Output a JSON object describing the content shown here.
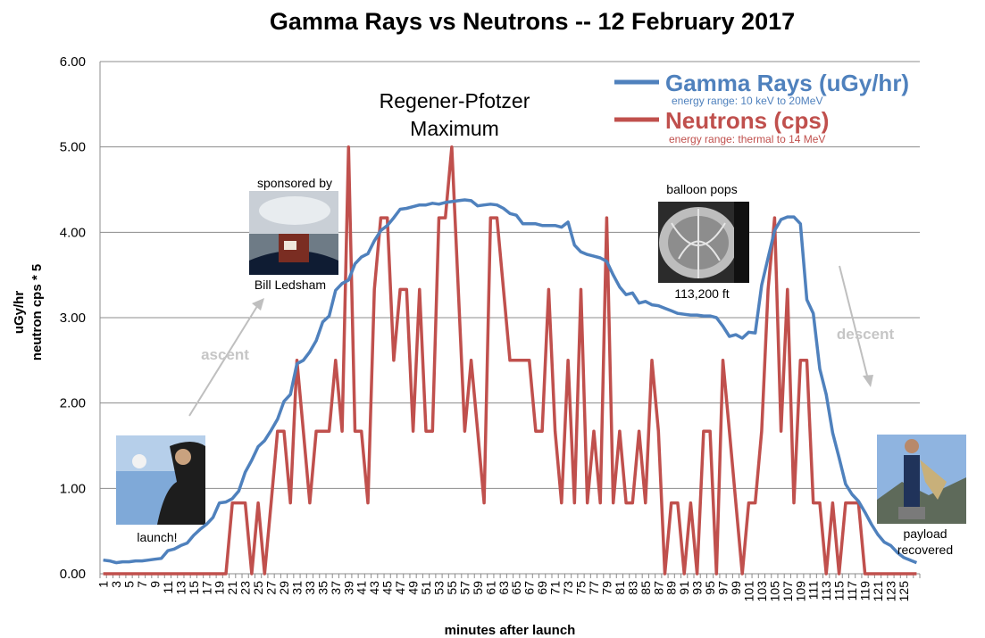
{
  "chart_data": {
    "type": "line",
    "title": "Gamma Rays vs Neutrons -- 12 February 2017",
    "xlabel": "minutes after launch",
    "ylabel_line1": "uGy/hr",
    "ylabel_line2": "neutron cps * 5",
    "ylim": [
      0,
      6
    ],
    "xlim": [
      1,
      127
    ],
    "y_ticks": [
      "0.00",
      "1.00",
      "2.00",
      "3.00",
      "4.00",
      "5.00",
      "6.00"
    ],
    "x_ticks": [
      "1",
      "3",
      "5",
      "7",
      "9",
      "11",
      "13",
      "15",
      "17",
      "19",
      "21",
      "23",
      "25",
      "27",
      "29",
      "31",
      "33",
      "35",
      "37",
      "39",
      "41",
      "43",
      "45",
      "47",
      "49",
      "51",
      "53",
      "55",
      "57",
      "59",
      "61",
      "63",
      "65",
      "67",
      "69",
      "71",
      "73",
      "75",
      "77",
      "79",
      "81",
      "83",
      "85",
      "87",
      "89",
      "91",
      "93",
      "95",
      "97",
      "99",
      "101",
      "103",
      "105",
      "107",
      "109",
      "111",
      "113",
      "115",
      "117",
      "119",
      "121",
      "123",
      "125"
    ],
    "grid": "horizontal",
    "legend_position": "top-right",
    "series": [
      {
        "name": "Gamma Rays (uGy/hr)",
        "subtitle": "energy range: 10 keV to 20MeV",
        "color": "#4f81bd",
        "values": [
          0.16,
          0.15,
          0.13,
          0.14,
          0.14,
          0.15,
          0.15,
          0.16,
          0.17,
          0.18,
          0.27,
          0.29,
          0.33,
          0.36,
          0.45,
          0.52,
          0.58,
          0.66,
          0.83,
          0.84,
          0.88,
          0.97,
          1.19,
          1.33,
          1.49,
          1.56,
          1.68,
          1.81,
          2.02,
          2.1,
          2.46,
          2.5,
          2.6,
          2.73,
          2.95,
          3.02,
          3.32,
          3.4,
          3.44,
          3.63,
          3.71,
          3.75,
          3.9,
          4.02,
          4.08,
          4.17,
          4.27,
          4.28,
          4.3,
          4.32,
          4.32,
          4.34,
          4.33,
          4.35,
          4.36,
          4.37,
          4.38,
          4.37,
          4.31,
          4.32,
          4.33,
          4.32,
          4.28,
          4.22,
          4.2,
          4.1,
          4.1,
          4.1,
          4.08,
          4.08,
          4.08,
          4.06,
          4.12,
          3.85,
          3.77,
          3.74,
          3.72,
          3.7,
          3.66,
          3.5,
          3.36,
          3.27,
          3.29,
          3.17,
          3.19,
          3.15,
          3.14,
          3.11,
          3.08,
          3.05,
          3.04,
          3.03,
          3.03,
          3.02,
          3.02,
          3.0,
          2.9,
          2.78,
          2.8,
          2.76,
          2.83,
          2.82,
          3.38,
          3.7,
          4.02,
          4.15,
          4.18,
          4.18,
          4.1,
          3.21,
          3.05,
          2.4,
          2.1,
          1.65,
          1.36,
          1.05,
          0.93,
          0.85,
          0.72,
          0.58,
          0.46,
          0.37,
          0.33,
          0.25,
          0.19,
          0.16,
          0.13
        ]
      },
      {
        "name": "Neutrons (cps)",
        "subtitle": "energy range: thermal to 14 MeV",
        "color": "#c0504d",
        "values": [
          0,
          0,
          0,
          0,
          0,
          0,
          0,
          0,
          0,
          0,
          0,
          0,
          0,
          0,
          0,
          0,
          0,
          0,
          0,
          0,
          0.83,
          0.83,
          0.83,
          0,
          0.83,
          0,
          0.83,
          1.67,
          1.67,
          0.83,
          2.5,
          1.67,
          0.83,
          1.67,
          1.67,
          1.67,
          2.5,
          1.67,
          5.0,
          1.67,
          1.67,
          0.83,
          3.33,
          4.17,
          4.17,
          2.5,
          3.33,
          3.33,
          1.67,
          3.33,
          1.67,
          1.67,
          4.17,
          4.17,
          5.0,
          3.33,
          1.67,
          2.5,
          1.67,
          0.83,
          4.17,
          4.17,
          3.33,
          2.5,
          2.5,
          2.5,
          2.5,
          1.67,
          1.67,
          3.33,
          1.67,
          0.83,
          2.5,
          0.83,
          3.33,
          0.83,
          1.67,
          0.83,
          4.17,
          0.83,
          1.67,
          0.83,
          0.83,
          1.67,
          0.83,
          2.5,
          1.67,
          0,
          0.83,
          0.83,
          0,
          0.83,
          0,
          1.67,
          1.67,
          0,
          2.5,
          1.67,
          0.83,
          0,
          0.83,
          0.83,
          1.67,
          3.33,
          4.17,
          1.67,
          3.33,
          0.83,
          2.5,
          2.5,
          0.83,
          0.83,
          0,
          0.83,
          0,
          0.83,
          0.83,
          0.83,
          0,
          0,
          0,
          0,
          0,
          0,
          0,
          0,
          0
        ]
      }
    ],
    "annotations": {
      "regener_line1": "Regener-Pfotzer",
      "regener_line2": "Maximum",
      "sponsored_by": "sponsored by",
      "sponsor_name": "Bill Ledsham",
      "balloon_pops": "balloon pops",
      "altitude": "113,200 ft",
      "ascent": "ascent",
      "descent": "descent",
      "launch": "launch!",
      "payload_line1": "payload",
      "payload_line2": "recovered"
    }
  }
}
